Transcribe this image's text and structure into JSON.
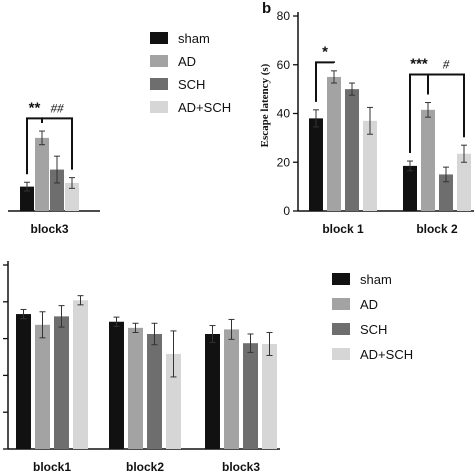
{
  "colors": {
    "sham": "#111111",
    "AD": "#a3a3a3",
    "SCH": "#6e6e6e",
    "AD+SCH": "#d6d6d6"
  },
  "legend_top": [
    "sham",
    "AD",
    "SCH",
    "AD+SCH"
  ],
  "legend_bottom": [
    "sham",
    "AD",
    "SCH",
    "AD+SCH"
  ],
  "chart_data": [
    {
      "id": "top-left",
      "type": "bar",
      "categories": [
        "block3"
      ],
      "series": [
        {
          "name": "sham",
          "values": [
            10
          ],
          "errors": [
            1.8
          ]
        },
        {
          "name": "AD",
          "values": [
            30
          ],
          "errors": [
            2.8
          ]
        },
        {
          "name": "SCH",
          "values": [
            17
          ],
          "errors": [
            5.5
          ]
        },
        {
          "name": "AD+SCH",
          "values": [
            11.5
          ],
          "errors": [
            2.2
          ]
        }
      ],
      "ylim": [
        0,
        80
      ],
      "significance": [
        {
          "label": "**",
          "from_series": 0,
          "to_series": 1,
          "y": 38
        },
        {
          "label": "##",
          "from_series": 1,
          "to_series": 3,
          "y": 38
        }
      ]
    },
    {
      "id": "top-right",
      "panel_letter": "b",
      "type": "bar",
      "ylabel": "Escape latency (s)",
      "yticks": [
        "0",
        "20",
        "40",
        "60",
        "80"
      ],
      "ylim": [
        0,
        80
      ],
      "categories": [
        "block 1",
        "block 2"
      ],
      "series": [
        {
          "name": "sham",
          "values": [
            38,
            18.5
          ],
          "errors": [
            3.5,
            2
          ]
        },
        {
          "name": "AD",
          "values": [
            55,
            41.5
          ],
          "errors": [
            2.5,
            3
          ]
        },
        {
          "name": "SCH",
          "values": [
            50,
            15
          ],
          "errors": [
            2.5,
            3
          ]
        },
        {
          "name": "AD+SCH",
          "values": [
            37,
            23.5
          ],
          "errors": [
            5.5,
            3.5
          ]
        }
      ],
      "significance": [
        {
          "label": "*",
          "category": 0,
          "from_series": 0,
          "to_series": 1,
          "y": 61
        },
        {
          "label": "***",
          "category": 1,
          "from_series": 0,
          "to_series": 1,
          "y": 56
        },
        {
          "label": "#",
          "category": 1,
          "from_series": 1,
          "to_series": 3,
          "y": 56
        }
      ]
    },
    {
      "id": "bottom",
      "type": "bar",
      "categories": [
        "block1",
        "block2",
        "block3"
      ],
      "series": [
        {
          "name": "sham",
          "values": [
            88,
            83,
            75
          ],
          "errors": [
            3,
            3,
            5.5
          ]
        },
        {
          "name": "AD",
          "values": [
            81,
            79,
            78
          ],
          "errors": [
            8.5,
            3,
            6.5
          ]
        },
        {
          "name": "SCH",
          "values": [
            86.5,
            75,
            69
          ],
          "errors": [
            7,
            7,
            6
          ]
        },
        {
          "name": "AD+SCH",
          "values": [
            97,
            62,
            68.5
          ],
          "errors": [
            3,
            15,
            7.5
          ]
        }
      ],
      "ylim": [
        0,
        120
      ]
    }
  ]
}
